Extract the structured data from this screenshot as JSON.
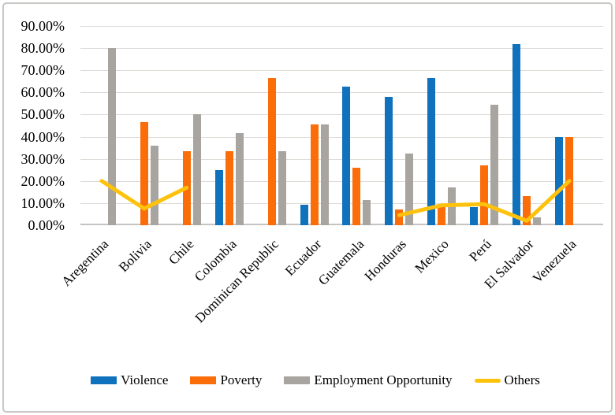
{
  "figure": {
    "background_color": "#ffffff",
    "border_color": "#c9c7c4"
  },
  "chart_data": {
    "type": "combo-bar-line",
    "title": "",
    "xlabel": "",
    "ylabel": "",
    "grid": "horizontal-only",
    "legend_position": "bottom",
    "categories": [
      "Aregentina",
      "Bolivia",
      "Chile",
      "Colombia",
      "Dominican Republic",
      "Ecuador",
      "Guatemala",
      "Honduras",
      "Mexico",
      "Perú",
      "El Salvador",
      "Venezuela"
    ],
    "y_axis": {
      "min": 0,
      "max": 90,
      "step": 10,
      "tick_labels": [
        "0.00%",
        "10.00%",
        "20.00%",
        "30.00%",
        "40.00%",
        "50.00%",
        "60.00%",
        "70.00%",
        "80.00%",
        "90.00%"
      ]
    },
    "series": [
      {
        "name": "Violence",
        "type": "bar",
        "color": "#1071bc",
        "values": [
          null,
          null,
          null,
          25,
          null,
          9.1,
          62.5,
          58,
          66.5,
          8.3,
          82,
          40
        ]
      },
      {
        "name": "Poverty",
        "type": "bar",
        "color": "#fb6d09",
        "values": [
          null,
          46.5,
          33.3,
          33.3,
          66.7,
          45.5,
          26,
          7,
          8.3,
          27,
          13,
          40
        ]
      },
      {
        "name": "Employment Opportunity",
        "type": "bar",
        "color": "#a8a4a0",
        "values": [
          80,
          36,
          50,
          41.7,
          33.3,
          45.5,
          11.5,
          32.5,
          17,
          54.5,
          3.5,
          null
        ]
      },
      {
        "name": "Others",
        "type": "line",
        "color": "#fec20d",
        "values": [
          20,
          7.5,
          17,
          null,
          null,
          null,
          null,
          4.5,
          9,
          9.5,
          2,
          20
        ]
      }
    ],
    "line_style": {
      "stroke_width": 5,
      "gap_note": "Others line has no data for Colombia, Dominican Republic, Ecuador, Guatemala"
    }
  }
}
